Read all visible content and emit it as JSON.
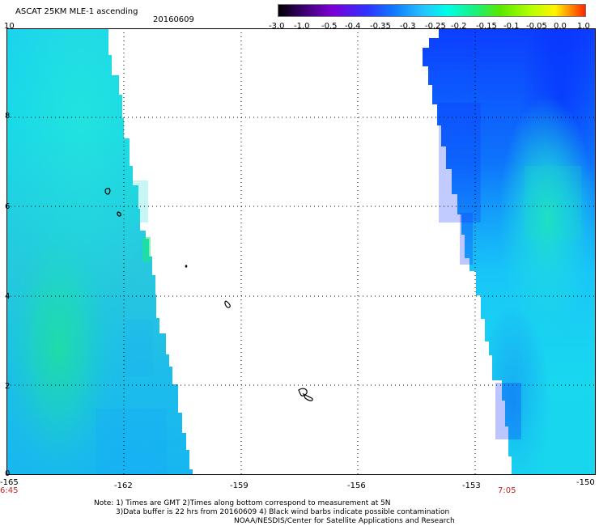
{
  "header": {
    "title": "ASCAT 25KM MLE-1 ascending",
    "date": "20160609"
  },
  "colorbar": {
    "ticks": [
      "-3.0",
      "-1.0",
      "-0.5",
      "-0.4",
      "-0.35",
      "-0.3",
      "-0.25",
      "-0.2",
      "-0.15",
      "-0.1",
      "-0.05",
      "0.0",
      "1.0"
    ],
    "colors": [
      "#000000",
      "#3a006a",
      "#7b00d7",
      "#2f32ff",
      "#0f7cff",
      "#27c1ff",
      "#00ffe6",
      "#18f07e",
      "#58e800",
      "#b4ff00",
      "#fff400",
      "#ff8a00",
      "#ff1e00"
    ]
  },
  "axes": {
    "y_labels": [
      "10",
      "8",
      "6",
      "4",
      "2",
      "0"
    ],
    "x_labels": [
      "-165",
      "-162",
      "-159",
      "-156",
      "-153",
      "-150"
    ],
    "time_left": "6:45",
    "time_right": "7:05"
  },
  "notes": {
    "line1": "Note: 1) Times are GMT 2)Times along bottom correspond to measurement at 5N",
    "line2": "3)Data buffer is 22 hrs from 20160609 4) Black wind barbs indicate possible contamination",
    "line3": "NOAA/NESDIS/Center for Satellite Applications and Research"
  },
  "map": {
    "grid": "dotted",
    "swaths": [
      "left-swath",
      "right-swath"
    ],
    "islands": 6
  }
}
